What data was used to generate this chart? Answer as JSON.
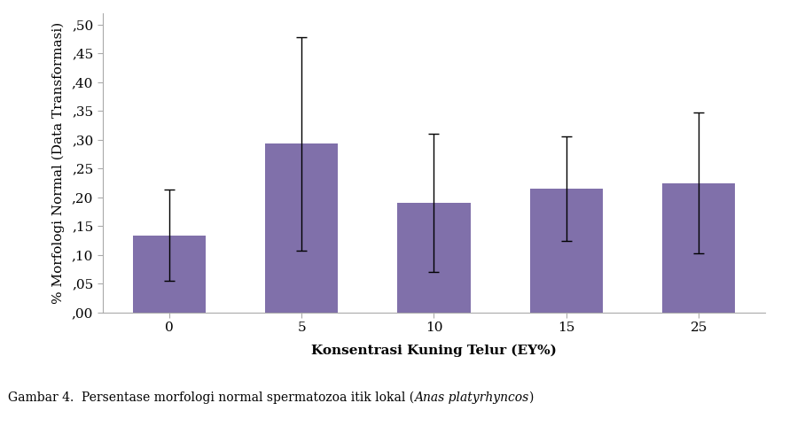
{
  "categories": [
    "0",
    "5",
    "10",
    "15",
    "25"
  ],
  "values": [
    0.134,
    0.293,
    0.191,
    0.215,
    0.225
  ],
  "errors_up": [
    0.079,
    0.185,
    0.12,
    0.09,
    0.122
  ],
  "errors_down": [
    0.079,
    0.185,
    0.12,
    0.09,
    0.122
  ],
  "bar_color": "#8070aa",
  "bar_width": 0.55,
  "xlabel": "Konsentrasi Kuning Telur (EY%)",
  "ylabel": "% Morfologi Normal (Data Transformasi)",
  "ylim": [
    0.0,
    0.52
  ],
  "yticks": [
    0.0,
    0.05,
    0.1,
    0.15,
    0.2,
    0.25,
    0.3,
    0.35,
    0.4,
    0.45,
    0.5
  ],
  "ytick_labels": [
    ",00",
    ",05",
    ",10",
    ",15",
    ",20",
    ",25",
    ",30",
    ",35",
    ",40",
    ",45",
    ",50"
  ],
  "caption_normal": "Gambar 4.  Persentase morfologi normal spermatozoa itik lokal (",
  "caption_italic": "Anas platyrhyncos",
  "caption_after": ")",
  "background_color": "#ffffff",
  "font_family": "DejaVu Serif"
}
